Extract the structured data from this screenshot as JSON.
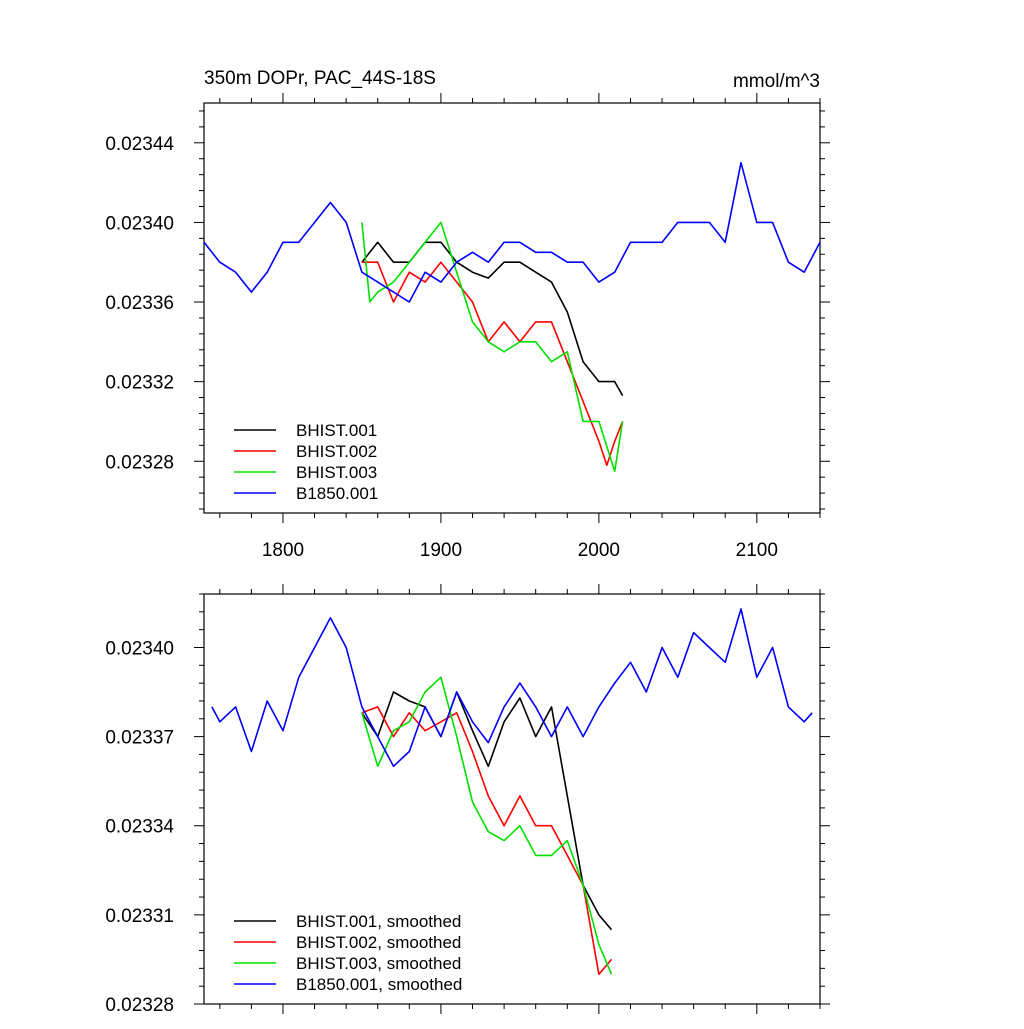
{
  "header": {
    "title": "350m DOPr, PAC_44S-18S",
    "units": "mmol/m^3"
  },
  "chart_data": [
    {
      "type": "line",
      "panel": "top",
      "xlim": [
        1750,
        2140
      ],
      "ylim": [
        0.023254,
        0.02346
      ],
      "xticks": [
        1800,
        1900,
        2000,
        2100
      ],
      "xtick_labels": [
        "1800",
        "1900",
        "2000",
        "2100"
      ],
      "yticks": [
        0.02328,
        0.02332,
        0.02336,
        0.0234,
        0.02344
      ],
      "ytick_labels": [
        "0.02328",
        "0.02332",
        "0.02336",
        "0.02340",
        "0.02344"
      ],
      "legend_position": "bottom-left",
      "series": [
        {
          "name": "BHIST.001",
          "color": "#000000",
          "x": [
            1850,
            1860,
            1870,
            1880,
            1890,
            1900,
            1910,
            1920,
            1930,
            1940,
            1950,
            1960,
            1970,
            1980,
            1990,
            2000,
            2010,
            2015
          ],
          "y": [
            0.02338,
            0.02339,
            0.02338,
            0.02338,
            0.02339,
            0.02339,
            0.02338,
            0.023375,
            0.023372,
            0.02338,
            0.02338,
            0.023375,
            0.02337,
            0.023355,
            0.02333,
            0.02332,
            0.02332,
            0.023313
          ]
        },
        {
          "name": "BHIST.002",
          "color": "#ff0000",
          "x": [
            1850,
            1860,
            1870,
            1880,
            1890,
            1900,
            1910,
            1920,
            1930,
            1940,
            1950,
            1960,
            1970,
            1980,
            1990,
            2000,
            2005,
            2010,
            2015
          ],
          "y": [
            0.02338,
            0.02338,
            0.02336,
            0.023375,
            0.02337,
            0.02338,
            0.02337,
            0.02336,
            0.02334,
            0.02335,
            0.02334,
            0.02335,
            0.02335,
            0.02333,
            0.02331,
            0.02329,
            0.023278,
            0.02329,
            0.0233
          ]
        },
        {
          "name": "BHIST.003",
          "color": "#00e000",
          "x": [
            1850,
            1855,
            1860,
            1870,
            1880,
            1890,
            1900,
            1910,
            1920,
            1930,
            1940,
            1950,
            1960,
            1970,
            1980,
            1990,
            2000,
            2010,
            2015
          ],
          "y": [
            0.0234,
            0.02336,
            0.023365,
            0.02337,
            0.02338,
            0.02339,
            0.0234,
            0.023375,
            0.02335,
            0.02334,
            0.023335,
            0.02334,
            0.02334,
            0.02333,
            0.023335,
            0.0233,
            0.0233,
            0.023275,
            0.0233
          ]
        },
        {
          "name": "B1850.001",
          "color": "#0000ff",
          "x": [
            1750,
            1760,
            1770,
            1780,
            1790,
            1800,
            1810,
            1820,
            1830,
            1840,
            1850,
            1860,
            1870,
            1880,
            1890,
            1900,
            1910,
            1920,
            1930,
            1940,
            1950,
            1960,
            1970,
            1980,
            1990,
            2000,
            2010,
            2020,
            2030,
            2040,
            2050,
            2060,
            2070,
            2080,
            2090,
            2100,
            2110,
            2120,
            2130,
            2140
          ],
          "y": [
            0.02339,
            0.02338,
            0.023375,
            0.023365,
            0.023375,
            0.02339,
            0.02339,
            0.0234,
            0.02341,
            0.0234,
            0.023375,
            0.02337,
            0.023365,
            0.02336,
            0.023375,
            0.02337,
            0.02338,
            0.023385,
            0.02338,
            0.02339,
            0.02339,
            0.023385,
            0.023385,
            0.02338,
            0.02338,
            0.02337,
            0.023375,
            0.02339,
            0.02339,
            0.02339,
            0.0234,
            0.0234,
            0.0234,
            0.02339,
            0.02343,
            0.0234,
            0.0234,
            0.02338,
            0.023375,
            0.02339
          ]
        }
      ]
    },
    {
      "type": "line",
      "panel": "bottom",
      "xlim": [
        1750,
        2140
      ],
      "ylim": [
        0.02328,
        0.023418
      ],
      "xticks": [
        1800,
        1900,
        2000,
        2100
      ],
      "yticks": [
        0.02328,
        0.02331,
        0.02334,
        0.02337,
        0.0234
      ],
      "ytick_labels": [
        "0.02328",
        "0.02331",
        "0.02334",
        "0.02337",
        "0.02340"
      ],
      "legend_position": "bottom-left",
      "series": [
        {
          "name": "BHIST.001, smoothed",
          "color": "#000000",
          "x": [
            1850,
            1860,
            1870,
            1880,
            1890,
            1900,
            1910,
            1920,
            1930,
            1940,
            1950,
            1960,
            1970,
            1980,
            1990,
            2000,
            2008
          ],
          "y": [
            0.023378,
            0.02337,
            0.023385,
            0.023382,
            0.02338,
            0.02337,
            0.023385,
            0.023372,
            0.02336,
            0.023375,
            0.023383,
            0.02337,
            0.02338,
            0.02335,
            0.02332,
            0.02331,
            0.023305
          ]
        },
        {
          "name": "BHIST.002, smoothed",
          "color": "#ff0000",
          "x": [
            1850,
            1860,
            1870,
            1880,
            1890,
            1900,
            1910,
            1920,
            1930,
            1940,
            1950,
            1960,
            1970,
            1980,
            1990,
            2000,
            2008
          ],
          "y": [
            0.023378,
            0.02338,
            0.02337,
            0.023378,
            0.023372,
            0.023375,
            0.023378,
            0.023365,
            0.02335,
            0.02334,
            0.02335,
            0.02334,
            0.02334,
            0.02333,
            0.02332,
            0.02329,
            0.023295
          ]
        },
        {
          "name": "BHIST.003, smoothed",
          "color": "#00e000",
          "x": [
            1850,
            1860,
            1870,
            1880,
            1890,
            1900,
            1910,
            1920,
            1930,
            1940,
            1950,
            1960,
            1970,
            1980,
            1990,
            2000,
            2008
          ],
          "y": [
            0.023378,
            0.02336,
            0.023372,
            0.023375,
            0.023385,
            0.02339,
            0.02337,
            0.023348,
            0.023338,
            0.023335,
            0.02334,
            0.02333,
            0.02333,
            0.023335,
            0.02332,
            0.0233,
            0.02329
          ]
        },
        {
          "name": "B1850.001, smoothed",
          "color": "#0000ff",
          "x": [
            1755,
            1760,
            1770,
            1780,
            1790,
            1800,
            1810,
            1820,
            1830,
            1840,
            1850,
            1860,
            1870,
            1880,
            1890,
            1900,
            1910,
            1920,
            1930,
            1940,
            1950,
            1960,
            1970,
            1980,
            1990,
            2000,
            2010,
            2020,
            2030,
            2040,
            2050,
            2060,
            2070,
            2080,
            2090,
            2100,
            2110,
            2120,
            2130,
            2135
          ],
          "y": [
            0.02338,
            0.023375,
            0.02338,
            0.023365,
            0.023382,
            0.023372,
            0.02339,
            0.0234,
            0.02341,
            0.0234,
            0.02338,
            0.02337,
            0.02336,
            0.023365,
            0.02338,
            0.02337,
            0.023385,
            0.023375,
            0.023368,
            0.02338,
            0.023388,
            0.02338,
            0.02337,
            0.02338,
            0.02337,
            0.02338,
            0.023388,
            0.023395,
            0.023385,
            0.0234,
            0.02339,
            0.023405,
            0.0234,
            0.023395,
            0.023413,
            0.02339,
            0.0234,
            0.02338,
            0.023375,
            0.023378
          ]
        }
      ]
    }
  ]
}
